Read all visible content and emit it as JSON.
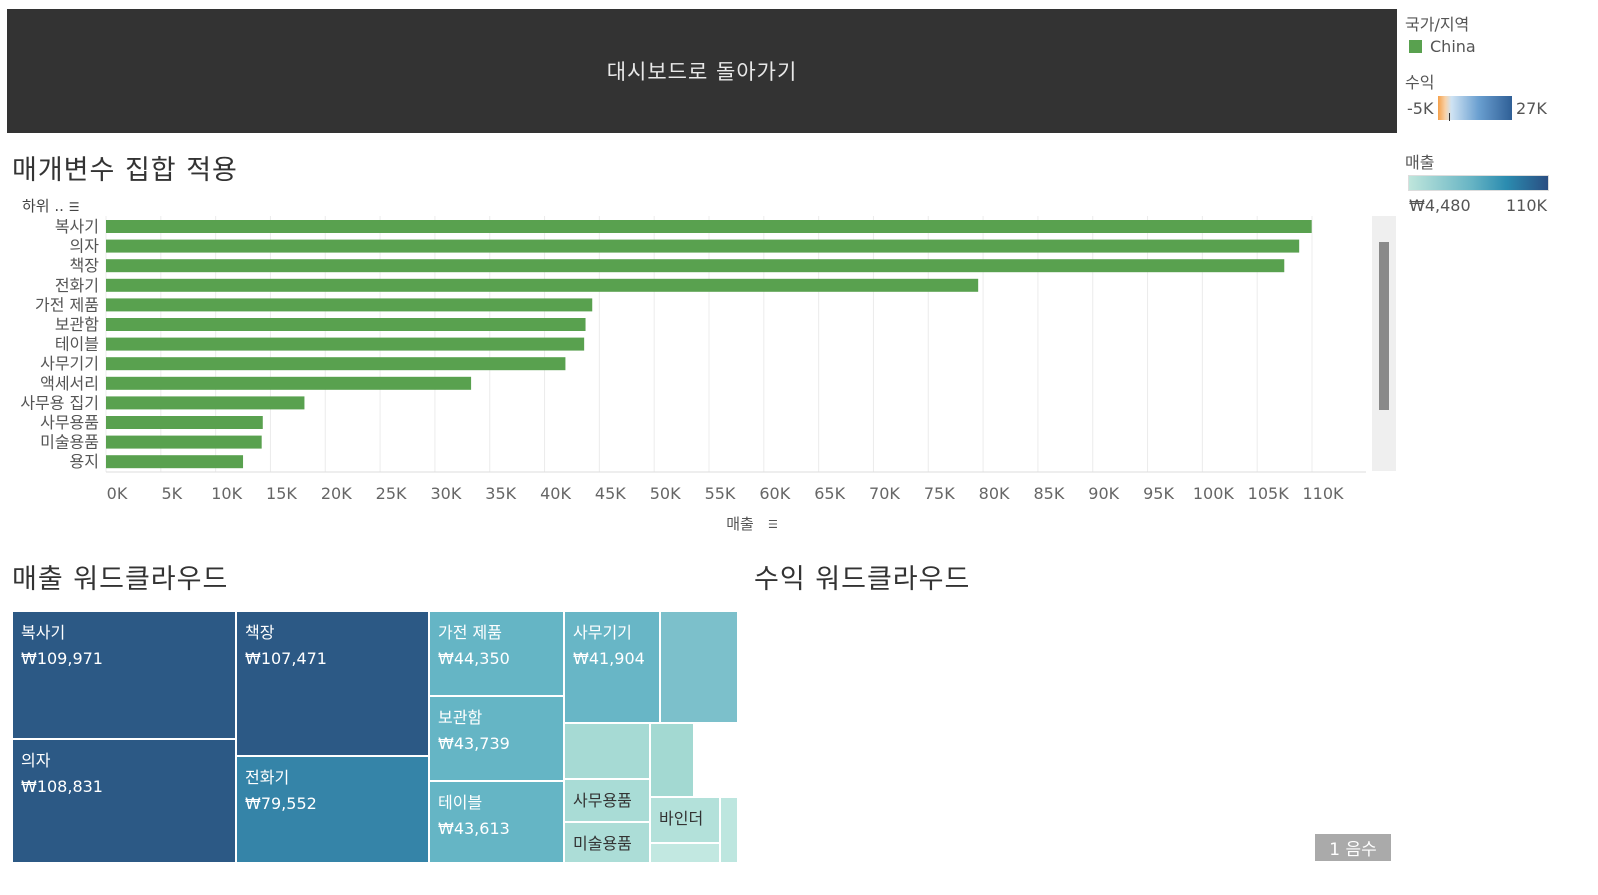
{
  "header": {
    "back_label": "대시보드로 돌아가기"
  },
  "legend": {
    "country_title": "국가/지역",
    "country_item": "China",
    "country_color": "#59a14f",
    "profit_title": "수익",
    "profit_min": "-5K",
    "profit_max": "27K",
    "sales_title": "매출",
    "sales_min": "₩4,480",
    "sales_max": "110K"
  },
  "bar_section": {
    "title": "매개변수 집합 적용",
    "sort_label": "하위 .."
  },
  "chart_data": [
    {
      "type": "bar",
      "orientation": "horizontal",
      "title": "매개변수 집합 적용",
      "categories": [
        "복사기",
        "의자",
        "책장",
        "전화기",
        "가전 제품",
        "보관함",
        "테이블",
        "사무기기",
        "액세서리",
        "사무용 집기",
        "사무용품",
        "미술용품",
        "용지"
      ],
      "values": [
        109971,
        108831,
        107471,
        79552,
        44350,
        43739,
        43613,
        41904,
        33300,
        18100,
        14300,
        14200,
        12500
      ],
      "xlabel": "매출",
      "xlim": [
        0,
        115000
      ],
      "xticks": [
        "0K",
        "5K",
        "10K",
        "15K",
        "20K",
        "25K",
        "30K",
        "35K",
        "40K",
        "45K",
        "50K",
        "55K",
        "60K",
        "65K",
        "70K",
        "75K",
        "80K",
        "85K",
        "90K",
        "95K",
        "100K",
        "105K",
        "110K"
      ],
      "color": "#59a14f",
      "grid": true
    },
    {
      "type": "treemap",
      "title": "매출 워드클라우드",
      "items": [
        {
          "name": "복사기",
          "label": "₩109,971",
          "value": 109971
        },
        {
          "name": "의자",
          "label": "₩108,831",
          "value": 108831
        },
        {
          "name": "책장",
          "label": "₩107,471",
          "value": 107471
        },
        {
          "name": "전화기",
          "label": "₩79,552",
          "value": 79552
        },
        {
          "name": "가전 제품",
          "label": "₩44,350",
          "value": 44350
        },
        {
          "name": "보관함",
          "label": "₩43,739",
          "value": 43739
        },
        {
          "name": "테이블",
          "label": "₩43,613",
          "value": 43613
        },
        {
          "name": "사무기기",
          "label": "₩41,904",
          "value": 41904
        },
        {
          "name": "",
          "label": "",
          "value": 33300
        },
        {
          "name": "",
          "label": "",
          "value": 18100
        },
        {
          "name": "사무용품",
          "label": "",
          "value": 14300
        },
        {
          "name": "미술용품",
          "label": "",
          "value": 14200
        },
        {
          "name": "",
          "label": "",
          "value": 12500
        },
        {
          "name": "바인더",
          "label": "",
          "value": 9800
        },
        {
          "name": "",
          "label": "",
          "value": 4480
        }
      ]
    }
  ],
  "profit_section": {
    "title": "수익 워드클라우드"
  },
  "count_badge": "1 음수"
}
